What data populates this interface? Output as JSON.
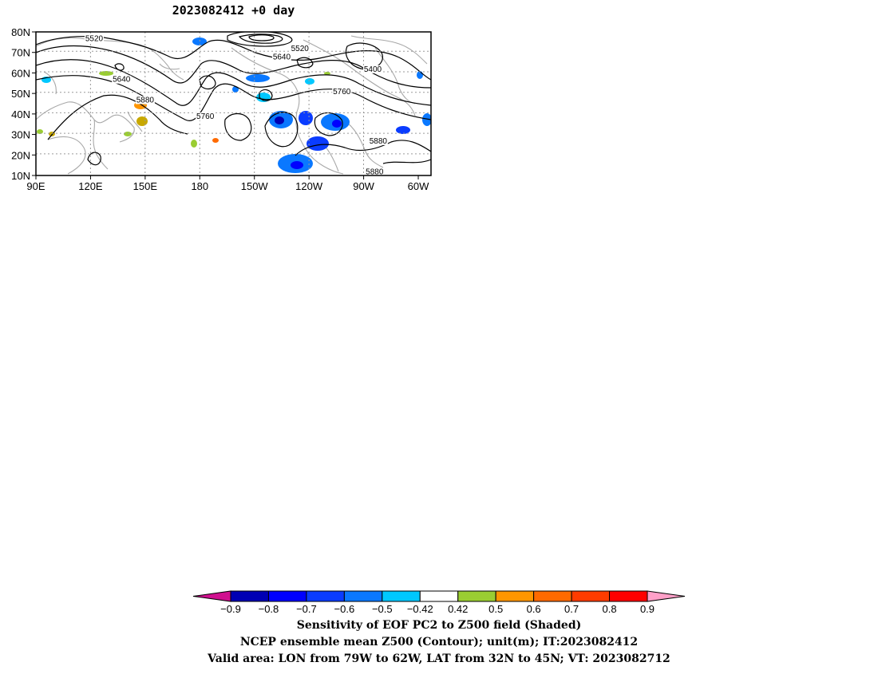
{
  "title": "2023082412 +0 day",
  "map": {
    "lat_range": [
      10,
      80
    ],
    "lon_range": [
      90,
      307
    ],
    "lat_labels": [
      {
        "lat": 80,
        "label": "80N"
      },
      {
        "lat": 70,
        "label": "70N"
      },
      {
        "lat": 60,
        "label": "60N"
      },
      {
        "lat": 50,
        "label": "50N"
      },
      {
        "lat": 40,
        "label": "40N"
      },
      {
        "lat": 30,
        "label": "30N"
      },
      {
        "lat": 20,
        "label": "20N"
      },
      {
        "lat": 10,
        "label": "10N"
      }
    ],
    "lon_labels": [
      {
        "lon": 90,
        "label": "90E"
      },
      {
        "lon": 120,
        "label": "120E"
      },
      {
        "lon": 150,
        "label": "150E"
      },
      {
        "lon": 180,
        "label": "180"
      },
      {
        "lon": 210,
        "label": "150W"
      },
      {
        "lon": 240,
        "label": "120W"
      },
      {
        "lon": 270,
        "label": "90W"
      },
      {
        "lon": 300,
        "label": "60W"
      }
    ],
    "contour_labels": [
      {
        "text": "5520",
        "lon": 122,
        "lat": 76
      },
      {
        "text": "5520",
        "lon": 235,
        "lat": 71
      },
      {
        "text": "5640",
        "lon": 225,
        "lat": 67
      },
      {
        "text": "5640",
        "lon": 137,
        "lat": 56
      },
      {
        "text": "5400",
        "lon": 275,
        "lat": 61
      },
      {
        "text": "5760",
        "lon": 258,
        "lat": 50
      },
      {
        "text": "5880",
        "lon": 150,
        "lat": 46
      },
      {
        "text": "5760",
        "lon": 183,
        "lat": 38
      },
      {
        "text": "5880",
        "lon": 278,
        "lat": 26
      },
      {
        "text": "5880",
        "lon": 276,
        "lat": 11
      }
    ]
  },
  "colorbar": {
    "levels": [
      "-0.9",
      "-0.8",
      "-0.7",
      "-0.6",
      "-0.5",
      "-0.42",
      "0.42",
      "0.5",
      "0.6",
      "0.7",
      "0.8",
      "0.9"
    ],
    "colors": [
      "#d0108f",
      "#0000b4",
      "#0000ff",
      "#0a3cff",
      "#0a78ff",
      "#00c8ff",
      "#ffffff",
      "#9acd32",
      "#ff9600",
      "#ff6a00",
      "#ff3c00",
      "#ff0000",
      "#ffa0c8"
    ]
  },
  "captions": {
    "line1": "Sensitivity of EOF PC2 to Z500 field (Shaded)",
    "line2": "NCEP ensemble mean Z500 (Contour); unit(m); IT:2023082412",
    "line3": "Valid area: LON from 79W to 62W, LAT from 32N to 45N; VT: 2023082712"
  }
}
